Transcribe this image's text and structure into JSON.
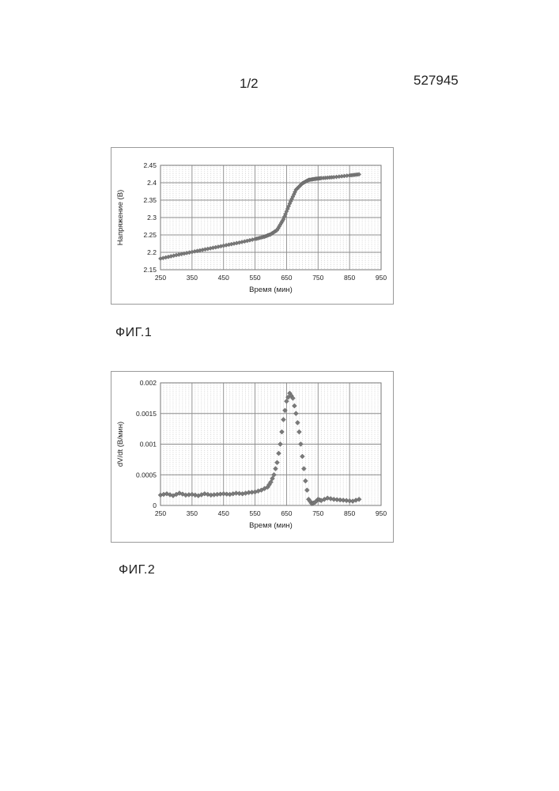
{
  "header": {
    "page": "1/2",
    "doc_number": "527945"
  },
  "figures": [
    {
      "label": "ФИГ.1"
    },
    {
      "label": "ФИГ.2"
    }
  ],
  "chart_data": [
    {
      "type": "scatter",
      "title": "",
      "xlabel": "Время (мин)",
      "ylabel": "Напряжение (В)",
      "xlim": [
        250,
        950
      ],
      "ylim": [
        2.15,
        2.45
      ],
      "x_ticks": [
        "250",
        "350",
        "450",
        "550",
        "650",
        "750",
        "850",
        "950"
      ],
      "y_ticks": [
        "2.15",
        "2.2",
        "2.25",
        "2.3",
        "2.35",
        "2.4",
        "2.45"
      ],
      "grid": true,
      "legend": "none",
      "marker_color": "#7a7a7a",
      "series": [
        {
          "x": [
            250,
            300,
            350,
            400,
            450,
            500,
            550,
            580,
            600,
            620,
            640,
            660,
            680,
            700,
            720,
            740,
            760,
            800,
            850,
            880
          ],
          "values": [
            2.182,
            2.192,
            2.201,
            2.21,
            2.219,
            2.228,
            2.238,
            2.245,
            2.252,
            2.264,
            2.295,
            2.34,
            2.38,
            2.398,
            2.408,
            2.411,
            2.413,
            2.416,
            2.421,
            2.424
          ]
        }
      ]
    },
    {
      "type": "scatter",
      "title": "",
      "xlabel": "Время (мин)",
      "ylabel": "dV/dt (В/мин)",
      "xlim": [
        250,
        950
      ],
      "ylim": [
        0,
        0.002
      ],
      "x_ticks": [
        "250",
        "350",
        "450",
        "550",
        "650",
        "750",
        "850",
        "950"
      ],
      "y_ticks": [
        "0",
        "0.0005",
        "0.001",
        "0.0015",
        "0.002"
      ],
      "grid": true,
      "legend": "none",
      "marker_color": "#7a7a7a",
      "series": [
        {
          "x": [
            250,
            270,
            290,
            310,
            330,
            350,
            370,
            390,
            410,
            430,
            450,
            470,
            490,
            510,
            530,
            550,
            570,
            590,
            600,
            610,
            620,
            630,
            640,
            650,
            660,
            670,
            680,
            690,
            700,
            710,
            720,
            730,
            740,
            750,
            760,
            780,
            800,
            820,
            840,
            860,
            880
          ],
          "values": [
            0.00017,
            0.00019,
            0.00016,
            0.0002,
            0.00017,
            0.00018,
            0.00016,
            0.00019,
            0.00017,
            0.00018,
            0.00019,
            0.00018,
            0.0002,
            0.00019,
            0.00021,
            0.00022,
            0.00025,
            0.0003,
            0.00038,
            0.0005,
            0.0007,
            0.001,
            0.0014,
            0.0017,
            0.00183,
            0.00175,
            0.0015,
            0.0012,
            0.0008,
            0.0004,
            0.0001,
            3e-05,
            5e-05,
            0.0001,
            8e-05,
            0.00012,
            0.0001,
            9e-05,
            8e-05,
            7e-05,
            0.0001
          ]
        }
      ]
    }
  ]
}
